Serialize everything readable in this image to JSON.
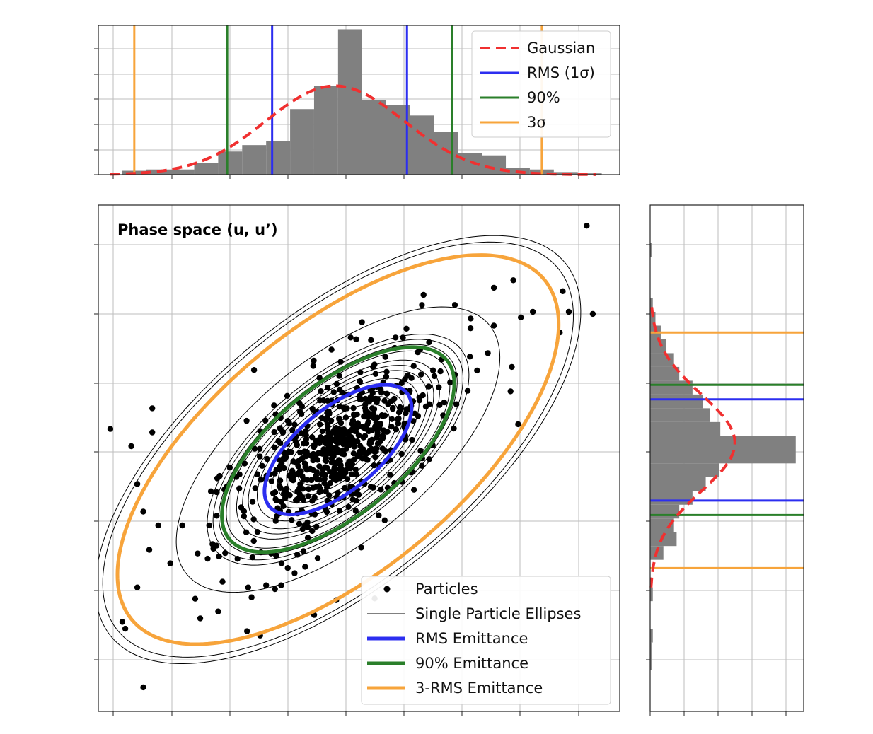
{
  "chart_data": [
    {
      "id": "top-histogram",
      "type": "histogram",
      "axis": "u",
      "xlim": [
        -4,
        4.7
      ],
      "ylim": [
        0,
        0.116
      ],
      "grid": true,
      "bins": [
        {
          "x0": -3.6,
          "x1": -3.2,
          "h": 0.003
        },
        {
          "x0": -3.2,
          "x1": -2.8,
          "h": 0.004
        },
        {
          "x0": -2.8,
          "x1": -2.4,
          "h": 0.004
        },
        {
          "x0": -2.4,
          "x1": -2.0,
          "h": 0.009
        },
        {
          "x0": -2.0,
          "x1": -1.6,
          "h": 0.018
        },
        {
          "x0": -1.6,
          "x1": -1.2,
          "h": 0.023
        },
        {
          "x0": -1.2,
          "x1": -0.8,
          "h": 0.026
        },
        {
          "x0": -0.8,
          "x1": -0.4,
          "h": 0.051
        },
        {
          "x0": -0.4,
          "x1": 0.0,
          "h": 0.069
        },
        {
          "x0": 0.0,
          "x1": 0.4,
          "h": 0.113
        },
        {
          "x0": 0.4,
          "x1": 0.8,
          "h": 0.058
        },
        {
          "x0": 0.8,
          "x1": 1.2,
          "h": 0.054
        },
        {
          "x0": 1.2,
          "x1": 1.6,
          "h": 0.046
        },
        {
          "x0": 1.6,
          "x1": 2.0,
          "h": 0.033
        },
        {
          "x0": 2.0,
          "x1": 2.4,
          "h": 0.017
        },
        {
          "x0": 2.4,
          "x1": 2.8,
          "h": 0.015
        },
        {
          "x0": 2.8,
          "x1": 3.2,
          "h": 0.005
        },
        {
          "x0": 3.2,
          "x1": 3.6,
          "h": 0.004
        },
        {
          "x0": 3.6,
          "x1": 4.0,
          "h": 0.002
        },
        {
          "x0": 4.0,
          "x1": 4.4,
          "h": 0.001
        }
      ],
      "gaussian": {
        "mu": -0.05,
        "sigma": 1.15,
        "amplitude": 0.069,
        "x_range": [
          -3.8,
          4.3
        ]
      },
      "vlines": [
        {
          "series": "rms",
          "x": [
            -1.1,
            1.15
          ]
        },
        {
          "series": "p90",
          "x": [
            -1.85,
            1.9
          ]
        },
        {
          "series": "three_sigma",
          "x": [
            -3.4,
            3.4
          ]
        }
      ],
      "legend": {
        "placement": "upper right",
        "entries": [
          {
            "key": "gaussian",
            "label": "Gaussian",
            "color": "#f03030",
            "style": "dashed"
          },
          {
            "key": "rms",
            "label": "RMS (1σ)",
            "color": "#2c2ef0",
            "style": "solid"
          },
          {
            "key": "p90",
            "label": "90%",
            "color": "#2a7f2a",
            "style": "solid"
          },
          {
            "key": "three_sigma",
            "label": "3σ",
            "color": "#f7a43b",
            "style": "solid"
          }
        ]
      }
    },
    {
      "id": "phase-space",
      "type": "scatter",
      "title": "Phase space (u, u’)",
      "xlim": [
        -4,
        4.7
      ],
      "ylim": [
        -3.8,
        3.55
      ],
      "grid": true,
      "particle_color": "#000000",
      "ellipse_params": {
        "center": [
          0.0,
          0.0
        ],
        "semi_major_per_rms": 1.415,
        "semi_minor_per_rms": 0.625,
        "tilt_deg": 33.7
      },
      "single_particle_ellipses_rms_scale": [
        0.55,
        0.7,
        0.82,
        0.9,
        1.1,
        1.22,
        1.3,
        1.38,
        1.52,
        1.62,
        1.7,
        1.78,
        2.2,
        3.2,
        3.3
      ],
      "emittance_ellipses": [
        {
          "series": "rms",
          "rms_scale": 1.0
        },
        {
          "series": "p90",
          "rms_scale": 1.58
        },
        {
          "series": "three_sigma",
          "rms_scale": 3.0
        }
      ],
      "outliers": [
        [
          4.15,
          3.25
        ],
        [
          3.75,
          2.3
        ],
        [
          3.85,
          2.0
        ],
        [
          4.25,
          1.97
        ],
        [
          3.7,
          1.7
        ],
        [
          2.6,
          2.35
        ],
        [
          3.05,
          1.92
        ],
        [
          3.25,
          2.0
        ],
        [
          1.95,
          2.1
        ],
        [
          2.6,
          1.8
        ],
        [
          2.2,
          1.35
        ],
        [
          2.5,
          1.4
        ],
        [
          2.9,
          1.2
        ],
        [
          1.4,
          2.1
        ],
        [
          0.4,
          1.85
        ],
        [
          -3.8,
          0.3
        ],
        [
          -3.45,
          0.05
        ],
        [
          -3.1,
          0.6
        ],
        [
          -3.35,
          -0.5
        ],
        [
          -3.25,
          -0.9
        ],
        [
          -3.0,
          -1.1
        ],
        [
          -2.8,
          -1.65
        ],
        [
          -3.35,
          -2.0
        ],
        [
          -3.6,
          -2.5
        ],
        [
          -3.55,
          -2.6
        ],
        [
          -2.3,
          -2.45
        ],
        [
          -2.0,
          -2.35
        ],
        [
          -1.3,
          -2.7
        ],
        [
          -3.25,
          -3.45
        ],
        [
          -0.4,
          -2.4
        ],
        [
          -1.5,
          -2.0
        ],
        [
          -1.2,
          -1.97
        ],
        [
          -0.95,
          -1.97
        ],
        [
          -0.55,
          -1.7
        ],
        [
          -2.15,
          -1.1
        ],
        [
          -2.6,
          -1.1
        ],
        [
          -3.1,
          0.25
        ]
      ],
      "legend": {
        "placement": "lower right",
        "entries": [
          {
            "key": "particles",
            "label": "Particles",
            "color": "#000000",
            "style": "marker"
          },
          {
            "key": "single",
            "label": "Single Particle Ellipses",
            "color": "#000000",
            "style": "thin"
          },
          {
            "key": "rms",
            "label": "RMS Emittance",
            "color": "#2c2ef0",
            "style": "thick"
          },
          {
            "key": "p90",
            "label": "90% Emittance",
            "color": "#2a7f2a",
            "style": "thick"
          },
          {
            "key": "three_sigma",
            "label": "3-RMS Emittance",
            "color": "#f7a43b",
            "style": "thick"
          }
        ]
      }
    },
    {
      "id": "right-histogram",
      "type": "histogram",
      "axis": "u’",
      "orientation": "horizontal",
      "xlim": [
        0,
        0.116
      ],
      "ylim": [
        -3.8,
        3.55
      ],
      "grid": true,
      "bins": [
        {
          "y0": 2.8,
          "y1": 3.0,
          "w": 0.001
        },
        {
          "y0": 2.0,
          "y1": 2.2,
          "w": 0.002
        },
        {
          "y0": 1.8,
          "y1": 2.0,
          "w": 0.004
        },
        {
          "y0": 1.6,
          "y1": 1.8,
          "w": 0.008
        },
        {
          "y0": 1.4,
          "y1": 1.6,
          "w": 0.012
        },
        {
          "y0": 1.2,
          "y1": 1.4,
          "w": 0.018
        },
        {
          "y0": 1.0,
          "y1": 1.2,
          "w": 0.022
        },
        {
          "y0": 0.8,
          "y1": 1.0,
          "w": 0.032
        },
        {
          "y0": 0.6,
          "y1": 0.8,
          "w": 0.04
        },
        {
          "y0": 0.4,
          "y1": 0.6,
          "w": 0.045
        },
        {
          "y0": 0.2,
          "y1": 0.4,
          "w": 0.053
        },
        {
          "y0": -0.2,
          "y1": 0.2,
          "w": 0.11
        },
        {
          "y0": -0.4,
          "y1": -0.2,
          "w": 0.052
        },
        {
          "y0": -0.6,
          "y1": -0.4,
          "w": 0.042
        },
        {
          "y0": -0.8,
          "y1": -0.6,
          "w": 0.032
        },
        {
          "y0": -1.0,
          "y1": -0.8,
          "w": 0.022
        },
        {
          "y0": -1.2,
          "y1": -1.0,
          "w": 0.018
        },
        {
          "y0": -1.4,
          "y1": -1.2,
          "w": 0.02
        },
        {
          "y0": -1.6,
          "y1": -1.4,
          "w": 0.01
        },
        {
          "y0": -2.2,
          "y1": -2.0,
          "w": 0.002
        },
        {
          "y0": -2.8,
          "y1": -2.6,
          "w": 0.002
        },
        {
          "y0": -3.2,
          "y1": -2.8,
          "w": 0.001
        }
      ],
      "gaussian": {
        "mu": 0.1,
        "sigma": 0.7,
        "amplitude": 0.064,
        "y_range": [
          -2.0,
          2.1
        ]
      },
      "hlines": [
        {
          "series": "three_sigma",
          "y": [
            1.7,
            -1.72
          ]
        },
        {
          "series": "p90",
          "y": [
            0.94,
            -0.95
          ]
        },
        {
          "series": "rms",
          "y": [
            0.73,
            -0.74
          ]
        }
      ]
    }
  ]
}
